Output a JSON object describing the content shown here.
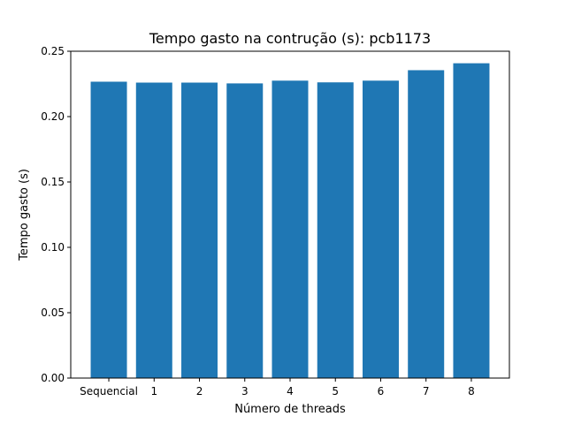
{
  "chart_data": {
    "type": "bar",
    "title": "Tempo gasto na contrução (s): pcb1173",
    "xlabel": "Número de threads",
    "ylabel": "Tempo gasto (s)",
    "categories": [
      "Sequencial",
      "1",
      "2",
      "3",
      "4",
      "5",
      "6",
      "7",
      "8"
    ],
    "values": [
      0.2267,
      0.226,
      0.226,
      0.2254,
      0.2275,
      0.2262,
      0.2275,
      0.2355,
      0.2408
    ],
    "ylim": [
      0,
      0.25
    ],
    "yticks": [
      {
        "value": 0.0,
        "label": "0.00"
      },
      {
        "value": 0.05,
        "label": "0.05"
      },
      {
        "value": 0.1,
        "label": "0.10"
      },
      {
        "value": 0.15,
        "label": "0.15"
      },
      {
        "value": 0.2,
        "label": "0.20"
      },
      {
        "value": 0.25,
        "label": "0.25"
      }
    ],
    "grid": false,
    "bar_color": "#1f77b4"
  }
}
